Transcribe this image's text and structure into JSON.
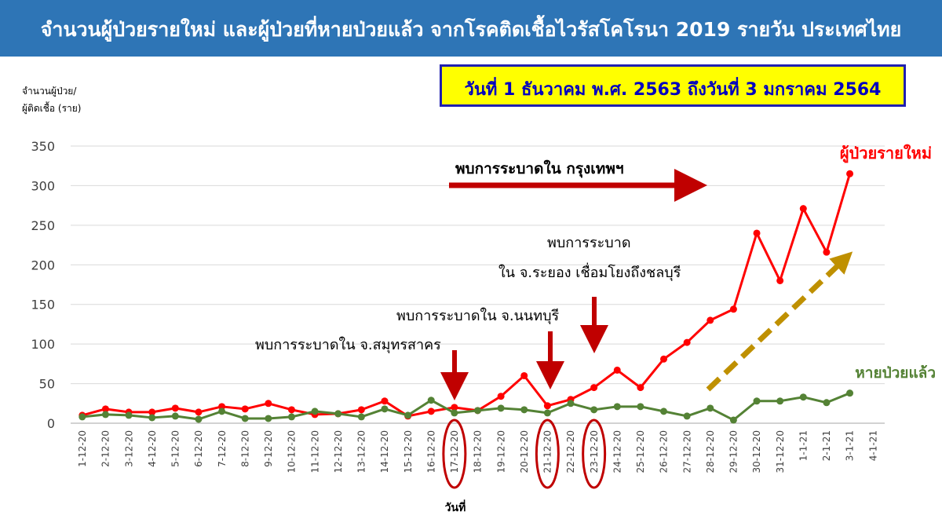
{
  "title": "จำนวนผู้ป่วยรายใหม่ และผู้ป่วยที่หายป่วยแล้ว จากโรคติดเชื้อไวรัสโคโรนา 2019 รายวัน ประเทศไทย",
  "date_range": "วันที่ 1 ธันวาคม พ.ศ. 2563 ถึงวันที่ 3 มกราคม 2564",
  "colors": {
    "header": "#2e75b6",
    "date_box_bg": "#ffff00",
    "date_box_border": "#1f1fb0",
    "date_box_text": "#0000c0",
    "new_cases": "#ff0000",
    "recovered": "#548235",
    "annotation_arrow": "#c00000",
    "trend_arrow": "#bf9000",
    "circle": "#c00000"
  },
  "chart_data": {
    "type": "line",
    "ylabel": [
      "จำนวนผู้ป่วย/",
      "ผู้ติดเชื้อ (ราย)"
    ],
    "xlabel": "วันที่",
    "ylim": [
      0,
      350
    ],
    "yticks": [
      "0",
      "50",
      "100",
      "150",
      "200",
      "250",
      "300",
      "350"
    ],
    "grid": "horizontal",
    "categories": [
      "1-12-20",
      "2-12-20",
      "3-12-20",
      "4-12-20",
      "5-12-20",
      "6-12-20",
      "7-12-20",
      "8-12-20",
      "9-12-20",
      "10-12-20",
      "11-12-20",
      "12-12-20",
      "13-12-20",
      "14-12-20",
      "15-12-20",
      "16-12-20",
      "17-12-20",
      "18-12-20",
      "19-12-20",
      "20-12-20",
      "21-12-20",
      "22-12-20",
      "23-12-20",
      "24-12-20",
      "25-12-20",
      "26-12-20",
      "27-12-20",
      "28-12-20",
      "29-12-20",
      "30-12-20",
      "31-12-20",
      "1-1-21",
      "2-1-21",
      "3-1-21",
      "4-1-21"
    ],
    "series": [
      {
        "name": "ผู้ป่วยรายใหม่",
        "color": "#ff0000",
        "values": [
          10,
          18,
          14,
          14,
          19,
          14,
          21,
          18,
          25,
          17,
          11,
          12,
          17,
          28,
          9,
          15,
          20,
          16,
          34,
          60,
          22,
          30,
          45,
          67,
          45,
          81,
          102,
          130,
          144,
          240,
          180,
          271,
          216,
          315,
          null
        ]
      },
      {
        "name": "หายป่วยแล้ว",
        "color": "#548235",
        "values": [
          8,
          11,
          10,
          7,
          9,
          5,
          15,
          6,
          6,
          8,
          15,
          12,
          8,
          18,
          10,
          29,
          13,
          16,
          19,
          17,
          13,
          25,
          17,
          21,
          21,
          15,
          9,
          19,
          4,
          28,
          28,
          33,
          26,
          38,
          null
        ]
      }
    ],
    "annotations": [
      {
        "text": "พบการระบาดใน กรุงเทพฯ"
      },
      {
        "text": "พบการระบาด"
      },
      {
        "text": "ใน จ.ระยอง เชื่อมโยงถึงชลบุรี"
      },
      {
        "text": "พบการระบาดใน จ.นนทบุรี"
      },
      {
        "text": "พบการระบาดใน จ.สมุทรสาคร"
      }
    ],
    "highlighted_dates": [
      "17-12-20",
      "21-12-20",
      "23-12-20"
    ]
  }
}
